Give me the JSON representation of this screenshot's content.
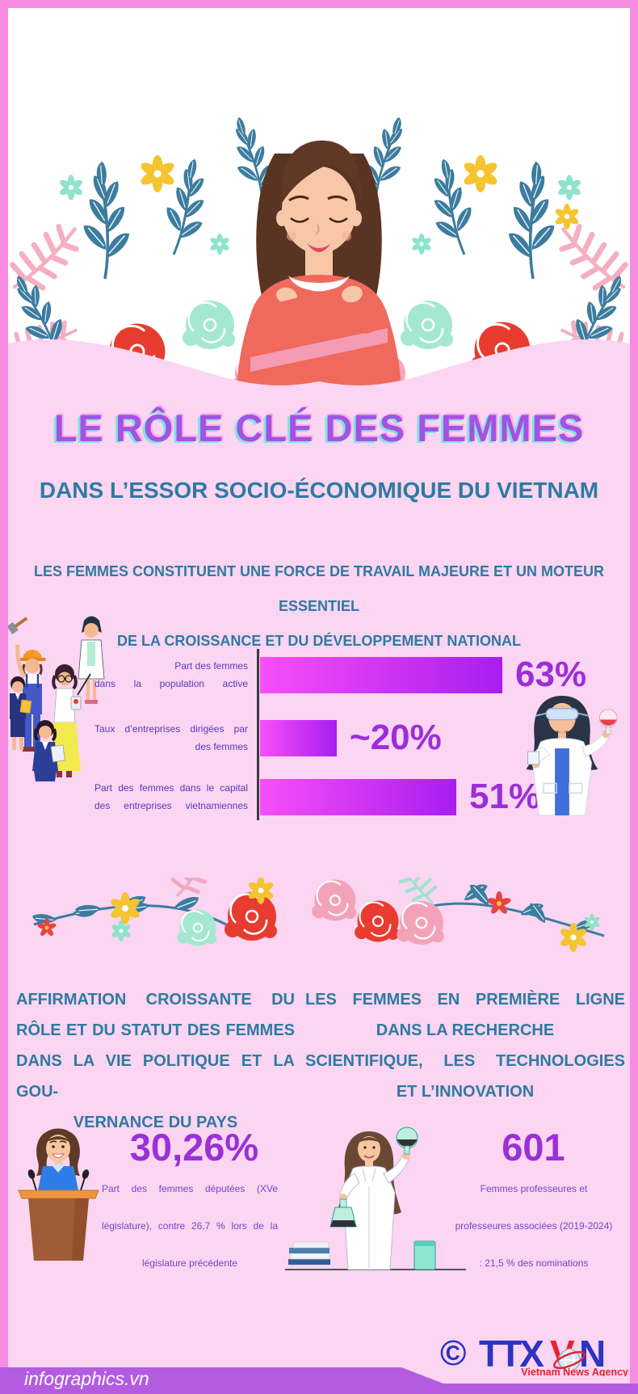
{
  "header": {
    "title": "LE RÔLE CLÉ DES FEMMES",
    "subtitle": "DANS L’ESSOR SOCIO-ÉCONOMIQUE DU VIETNAM"
  },
  "intro": {
    "lines": [
      "LES FEMMES CONSTITUENT UNE FORCE DE TRAVAIL MAJEURE ET UN MOTEUR ESSENTIEL",
      "DE LA CROISSANCE ET DU DÉVELOPPEMENT NATIONAL"
    ]
  },
  "chart_data": {
    "type": "bar",
    "orientation": "horizontal",
    "categories": [
      "Part des femmes dans la population active",
      "Taux d’entreprises dirigées par des femmes",
      "Part des femmes dans le capital des entreprises vietnamiennes"
    ],
    "values": [
      63,
      20,
      51
    ],
    "value_labels": [
      "63%",
      "~20%",
      "51%"
    ],
    "bars": [
      {
        "label_lines": [
          "Part des femmes",
          "dans la population active"
        ],
        "value": 63,
        "value_label": "63%"
      },
      {
        "label_lines": [
          "Taux d’entreprises dirigées par",
          "des femmes"
        ],
        "value": 20,
        "value_label": "~20%"
      },
      {
        "label_lines": [
          "Part des femmes dans le capital",
          "des entreprises vietnamiennes"
        ],
        "value": 51,
        "value_label": "51%"
      }
    ],
    "xlim": [
      0,
      66
    ],
    "unit": "%",
    "bar_gradient": [
      "#f74ef8",
      "#a81ef0"
    ],
    "grid": false,
    "legend": false
  },
  "sections": {
    "left": {
      "heading_lines": [
        "AFFIRMATION CROISSANTE DU",
        "RÔLE ET DU STATUT DES FEMMES",
        "DANS LA VIE POLITIQUE ET LA GOU-",
        "VERNANCE DU PAYS"
      ]
    },
    "right": {
      "heading_lines": [
        "LES FEMMES EN PREMIÈRE LIGNE",
        "DANS LA RECHERCHE",
        "SCIENTIFIQUE, LES TECHNOLOGIES",
        "ET L’INNOVATION"
      ]
    }
  },
  "stats": {
    "politics": {
      "value_label": "30,26%",
      "desc_lines": [
        "Part des femmes députées (XVe",
        "législature), contre 26,7 % lors de la",
        "législature précédente"
      ]
    },
    "science": {
      "value_label": "601",
      "desc_lines": [
        "Femmes professeures et",
        "professeures associées (2019-2024)",
        ": 21,5 % des nominations"
      ]
    }
  },
  "logo": {
    "copyright": "©",
    "ttx": "TTX",
    "v": "V",
    "n": "N",
    "tagline": "Vietnam News Agency"
  },
  "footer": {
    "brand": "infographics.vn"
  },
  "icons": {
    "illustrations": [
      "woman-with-flowers",
      "working-women-group",
      "chemist-with-flask",
      "flower-divider",
      "woman-at-podium",
      "scientist-with-flasks",
      "ttxvn-globe"
    ]
  },
  "colors": {
    "background_pink": "#fbd5f1",
    "frame_pink": "#f78ce2",
    "title_purple": "#a352e2",
    "title_shadow_cyan": "#7de4e4",
    "heading_teal": "#2e7aa2",
    "bar_label_indigo": "#5639b8",
    "bar_value_purple": "#9c2ed8",
    "stat_value_purple": "#9a30d6",
    "stat_text_purple": "#7a42cc",
    "footer_purple": "#b35ce2",
    "logo_blue": "#2a35c0",
    "logo_red": "#e62230"
  }
}
